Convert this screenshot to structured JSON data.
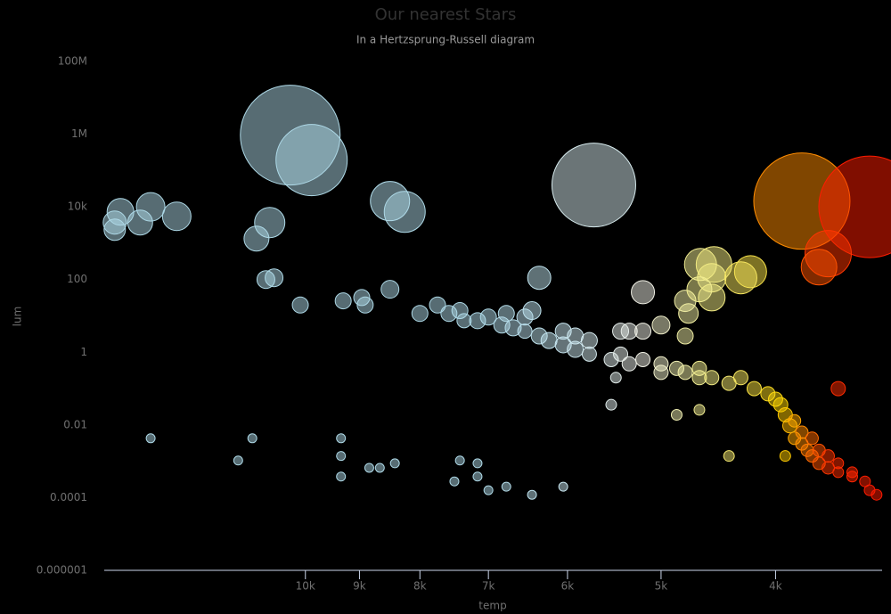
{
  "chart_data": {
    "type": "bubble",
    "title": "Our nearest Stars",
    "subtitle": "In a Hertzsprung-Russell diagram",
    "x_label": "temp",
    "y_label": "lum",
    "xlog": true,
    "ylog": true,
    "xreversed": true,
    "xlim": [
      14800,
      3250
    ],
    "ylim": [
      1e-06,
      100000000
    ],
    "xticks": [
      {
        "value": 10000,
        "label": "10k"
      },
      {
        "value": 9000,
        "label": "9k"
      },
      {
        "value": 8000,
        "label": "8k"
      },
      {
        "value": 7000,
        "label": "7k"
      },
      {
        "value": 6000,
        "label": "6k"
      },
      {
        "value": 5000,
        "label": "5k"
      },
      {
        "value": 4000,
        "label": "4k"
      }
    ],
    "yticks": [
      {
        "value": 1e-06,
        "label": "0.000001"
      },
      0.0001,
      0.01,
      1,
      100,
      {
        "value": 10000,
        "label": "10k"
      },
      {
        "value": 1000000,
        "label": "1M"
      },
      {
        "value": 100000000,
        "label": "100M"
      }
    ],
    "grid": false,
    "color_scale": [
      {
        "value": 3300,
        "color": "#ff1a00"
      },
      {
        "value": 3600,
        "color": "#ff3000"
      },
      {
        "value": 3800,
        "color": "#ff8c00"
      },
      {
        "value": 3950,
        "color": "#ffd700"
      },
      {
        "value": 4300,
        "color": "#f5e663"
      },
      {
        "value": 4700,
        "color": "#f0ee9a"
      },
      {
        "value": 5200,
        "color": "#f0f0e8"
      },
      {
        "value": 6000,
        "color": "#c8e6f0"
      },
      {
        "value": 7000,
        "color": "#add8e6"
      },
      {
        "value": 15000,
        "color": "#add8e6"
      }
    ],
    "series": [
      {
        "x": [
          10300,
          9880,
          5700,
          3800,
          3330,
          8480,
          8240,
          10720,
          11000,
          14340,
          14500,
          14500,
          13800,
          13520,
          12850,
          3610,
          3675,
          4630,
          4510,
          4530,
          4200,
          4280,
          4770,
          4740,
          4770,
          4530,
          5180,
          6340,
          8480,
          8960,
          8900,
          9290,
          10100,
          10800,
          10630,
          4640,
          3540,
          5000,
          5320,
          5180,
          5410,
          6520,
          6430,
          13520,
          11400,
          11090,
          9330,
          9330,
          9330,
          8830,
          8650,
          8400,
          7480,
          7400,
          7150,
          7150,
          7000,
          6760,
          6430,
          6050,
          5510,
          5460,
          4850,
          4640,
          4380,
          3925,
          8000,
          7730,
          7560,
          7400,
          7340,
          7150,
          7000,
          6820,
          6760,
          6670,
          6520,
          6340,
          6220,
          6050,
          6050,
          5910,
          5910,
          5750,
          5750,
          5510,
          5410,
          5320,
          5180,
          5000,
          5000,
          4850,
          4770,
          4640,
          4640,
          4530,
          4380,
          4280,
          4170,
          4060,
          4000,
          3960,
          3925,
          3890,
          3855,
          3855,
          3800,
          3800,
          3760,
          3725,
          3725,
          3675,
          3675,
          3610,
          3610,
          3540,
          3540,
          3445,
          3445,
          3360,
          3330,
          3285
        ],
        "values": [
          944000,
          194000,
          40000,
          14400,
          10000,
          14400,
          7300,
          3700,
          1340,
          7300,
          3700,
          2350,
          3700,
          10000,
          5500,
          518,
          220,
          260,
          260,
          112,
          165,
          112,
          26,
          11.7,
          2.8,
          32,
          45,
          112,
          54,
          32,
          20,
          26,
          20,
          100,
          112,
          54,
          0.1,
          5.6,
          3.8,
          3.8,
          3.8,
          9.3,
          14,
          0.0043,
          0.00105,
          0.0043,
          0.0043,
          0.0014,
          0.00038,
          0.00066,
          0.00066,
          0.00088,
          0.00028,
          0.00105,
          0.00088,
          0.00038,
          0.00016,
          0.0002,
          0.00012,
          0.0002,
          0.036,
          0.2,
          0.019,
          0.026,
          0.0014,
          0.0014,
          11.7,
          20,
          11.7,
          14,
          7.4,
          7.4,
          9.3,
          5.6,
          11.7,
          4.7,
          3.8,
          2.8,
          2.1,
          3.8,
          1.6,
          1.2,
          2.8,
          0.89,
          2.1,
          0.63,
          0.89,
          0.48,
          0.63,
          0.48,
          0.28,
          0.36,
          0.28,
          0.36,
          0.2,
          0.2,
          0.14,
          0.2,
          0.1,
          0.072,
          0.051,
          0.036,
          0.019,
          0.0095,
          0.013,
          0.0043,
          0.0063,
          0.003,
          0.002,
          0.0043,
          0.0014,
          0.002,
          0.00088,
          0.0014,
          0.00066,
          0.00088,
          0.0005,
          0.00038,
          0.0005,
          0.00028,
          0.00016,
          0.00012
        ],
        "sizes": [
          56,
          40,
          47,
          54,
          57,
          22,
          23,
          17,
          14,
          15,
          13,
          12,
          14,
          16,
          16,
          26,
          20,
          18,
          20,
          16,
          18,
          18,
          12,
          11,
          9,
          15,
          13,
          13,
          10,
          9,
          9,
          9,
          9,
          10,
          10,
          14,
          8,
          10,
          9,
          9,
          9,
          9,
          10,
          5,
          5,
          5,
          5,
          5,
          5,
          5,
          5,
          5,
          5,
          5,
          5,
          5,
          5,
          5,
          5,
          5,
          6,
          6,
          6,
          6,
          6,
          6,
          9,
          9,
          9,
          9,
          8,
          9,
          9,
          9,
          9,
          9,
          8,
          9,
          9,
          9,
          9,
          9,
          9,
          8,
          9,
          8,
          8,
          8,
          8,
          8,
          8,
          8,
          8,
          8,
          8,
          8,
          8,
          8,
          8,
          8,
          8,
          8,
          8,
          8,
          7,
          7,
          7,
          7,
          7,
          7,
          7,
          7,
          7,
          7,
          7,
          6,
          6,
          6,
          6,
          6,
          6,
          6
        ]
      }
    ]
  }
}
